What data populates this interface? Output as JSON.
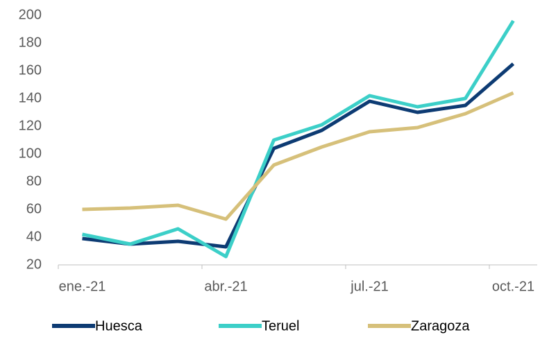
{
  "chart_data": {
    "type": "line",
    "categories": [
      "ene.-21",
      null,
      null,
      "abr.-21",
      null,
      null,
      "jul.-21",
      null,
      null,
      "oct.-21"
    ],
    "series": [
      {
        "name": "Huesca",
        "color": "#0d3b73",
        "values": [
          39,
          35,
          37,
          33,
          104,
          117,
          138,
          130,
          135,
          165
        ]
      },
      {
        "name": "Teruel",
        "color": "#3ccfc8",
        "values": [
          42,
          35,
          46,
          26,
          110,
          121,
          142,
          134,
          140,
          196
        ]
      },
      {
        "name": "Zaragoza",
        "color": "#d6c07a",
        "values": [
          60,
          61,
          63,
          53,
          92,
          105,
          116,
          119,
          129,
          144
        ]
      }
    ],
    "ylim": [
      20,
      200
    ],
    "yticks": [
      20,
      40,
      60,
      80,
      100,
      120,
      140,
      160,
      180,
      200
    ],
    "legend": "bottom"
  }
}
